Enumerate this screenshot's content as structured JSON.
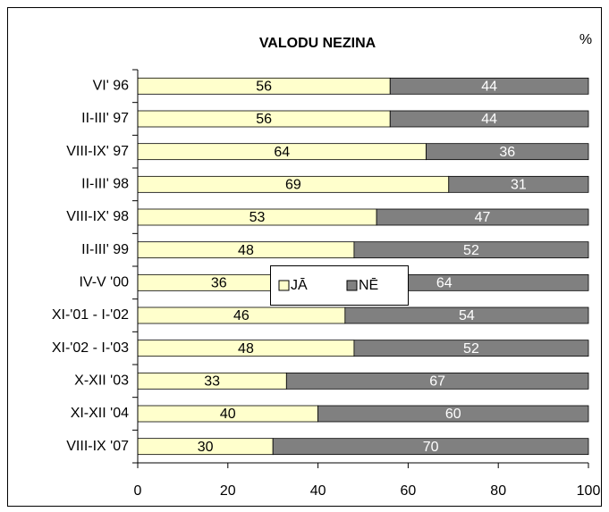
{
  "chart_data": {
    "type": "stacked_barh",
    "title": "VALODU NEZINA",
    "unit_label": "%",
    "categories": [
      "VI' 96",
      "II-III' 97",
      "VIII-IX' 97",
      "II-III' 98",
      "VIII-IX' 98",
      "II-III' 99",
      "IV-V '00",
      "XI-'01 - I-'02",
      "XI-'02 - I-'03",
      "X-XII '03",
      "XI-XII '04",
      "VIII-IX '07"
    ],
    "series": [
      {
        "name": "JĀ",
        "color": "#ffffcc",
        "label_color": "#000000",
        "values": [
          56,
          56,
          64,
          69,
          53,
          48,
          36,
          46,
          48,
          33,
          40,
          30
        ]
      },
      {
        "name": "NĒ",
        "color": "#808080",
        "label_color": "#ffffff",
        "values": [
          44,
          44,
          36,
          31,
          47,
          52,
          64,
          54,
          52,
          67,
          60,
          70
        ]
      }
    ],
    "xlim": [
      0,
      100
    ],
    "xticks": [
      0,
      20,
      40,
      60,
      80,
      100
    ]
  }
}
